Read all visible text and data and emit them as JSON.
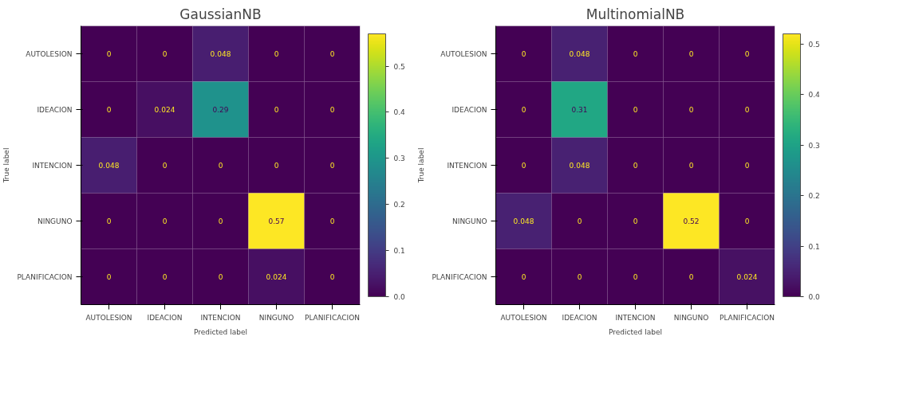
{
  "chart_data": [
    {
      "type": "heatmap",
      "title": "GaussianNB",
      "xlabel": "Predicted label",
      "ylabel": "True label",
      "categories": [
        "AUTOLESION",
        "IDEACION",
        "INTENCION",
        "NINGUNO",
        "PLANIFICACION"
      ],
      "y_categories": [
        "AUTOLESION",
        "IDEACION",
        "INTENCION",
        "NINGUNO",
        "PLANIFICACION"
      ],
      "cells": [
        [
          0,
          0,
          0.048,
          0,
          0
        ],
        [
          0,
          0.024,
          0.29,
          0,
          0
        ],
        [
          0.048,
          0,
          0,
          0,
          0
        ],
        [
          0,
          0,
          0,
          0.57,
          0
        ],
        [
          0,
          0,
          0,
          0.024,
          0
        ]
      ],
      "data_labels": true,
      "clim": [
        0,
        0.57
      ],
      "cticks": [
        {
          "value": 0,
          "label": "0.0"
        },
        {
          "value": 0.1,
          "label": "0.1"
        },
        {
          "value": 0.2,
          "label": "0.2"
        },
        {
          "value": 0.3,
          "label": "0.3"
        },
        {
          "value": 0.4,
          "label": "0.4"
        },
        {
          "value": 0.5,
          "label": "0.5"
        }
      ]
    },
    {
      "type": "heatmap",
      "title": "MultinomialNB",
      "xlabel": "Predicted label",
      "ylabel": "True label",
      "categories": [
        "AUTOLESION",
        "IDEACION",
        "INTENCION",
        "NINGUNO",
        "PLANIFICACION"
      ],
      "y_categories": [
        "AUTOLESION",
        "IDEACION",
        "INTENCION",
        "NINGUNO",
        "PLANIFICACION"
      ],
      "cells": [
        [
          0,
          0.048,
          0,
          0,
          0
        ],
        [
          0,
          0.31,
          0,
          0,
          0
        ],
        [
          0,
          0.048,
          0,
          0,
          0
        ],
        [
          0.048,
          0,
          0,
          0.52,
          0
        ],
        [
          0,
          0,
          0,
          0,
          0.024
        ]
      ],
      "data_labels": true,
      "clim": [
        0,
        0.52
      ],
      "cticks": [
        {
          "value": 0,
          "label": "0.0"
        },
        {
          "value": 0.1,
          "label": "0.1"
        },
        {
          "value": 0.2,
          "label": "0.2"
        },
        {
          "value": 0.3,
          "label": "0.3"
        },
        {
          "value": 0.4,
          "label": "0.4"
        },
        {
          "value": 0.5,
          "label": "0.5"
        }
      ]
    }
  ]
}
